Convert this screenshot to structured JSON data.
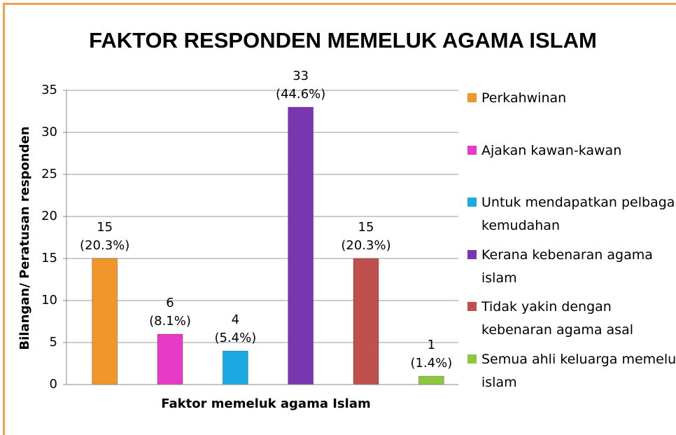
{
  "chart_data": {
    "type": "bar",
    "title": "FAKTOR RESPONDEN MEMELUK AGAMA ISLAM",
    "x_label": "Faktor memeluk agama Islam",
    "y_label": "Bilangan/ Peratusan responden",
    "ylim": [
      0,
      35
    ],
    "yticks": [
      0,
      5,
      10,
      15,
      20,
      25,
      30,
      35
    ],
    "grid": true,
    "legend": "right",
    "series": [
      {
        "name": "Perkahwinan",
        "color": "#f0962a",
        "values": [
          15
        ],
        "percents": [
          20.3
        ],
        "percent_labels": [
          "(20.3%)"
        ]
      },
      {
        "name": "Ajakan kawan-kawan",
        "color": "#e83ac8",
        "values": [
          6
        ],
        "percents": [
          8.1
        ],
        "percent_labels": [
          "(8.1%)"
        ]
      },
      {
        "name": "Untuk mendapatkan pelbagai kemudahan",
        "color": "#1aa9e0",
        "values": [
          4
        ],
        "percents": [
          5.4
        ],
        "percent_labels": [
          "(5.4%)"
        ]
      },
      {
        "name": "Kerana kebenaran agama islam",
        "color": "#7a35b0",
        "values": [
          33
        ],
        "percents": [
          44.6
        ],
        "percent_labels": [
          "(44.6%)"
        ]
      },
      {
        "name": "Tidak yakin dengan kebenaran agama asal",
        "color": "#c0504d",
        "values": [
          15
        ],
        "percents": [
          20.3
        ],
        "percent_labels": [
          "(20.3%)"
        ]
      },
      {
        "name": "Semua ahli keluarga memeluk islam",
        "color": "#8dc63f",
        "values": [
          1
        ],
        "percents": [
          1.4
        ],
        "percent_labels": [
          "(1.4%)"
        ]
      }
    ]
  }
}
